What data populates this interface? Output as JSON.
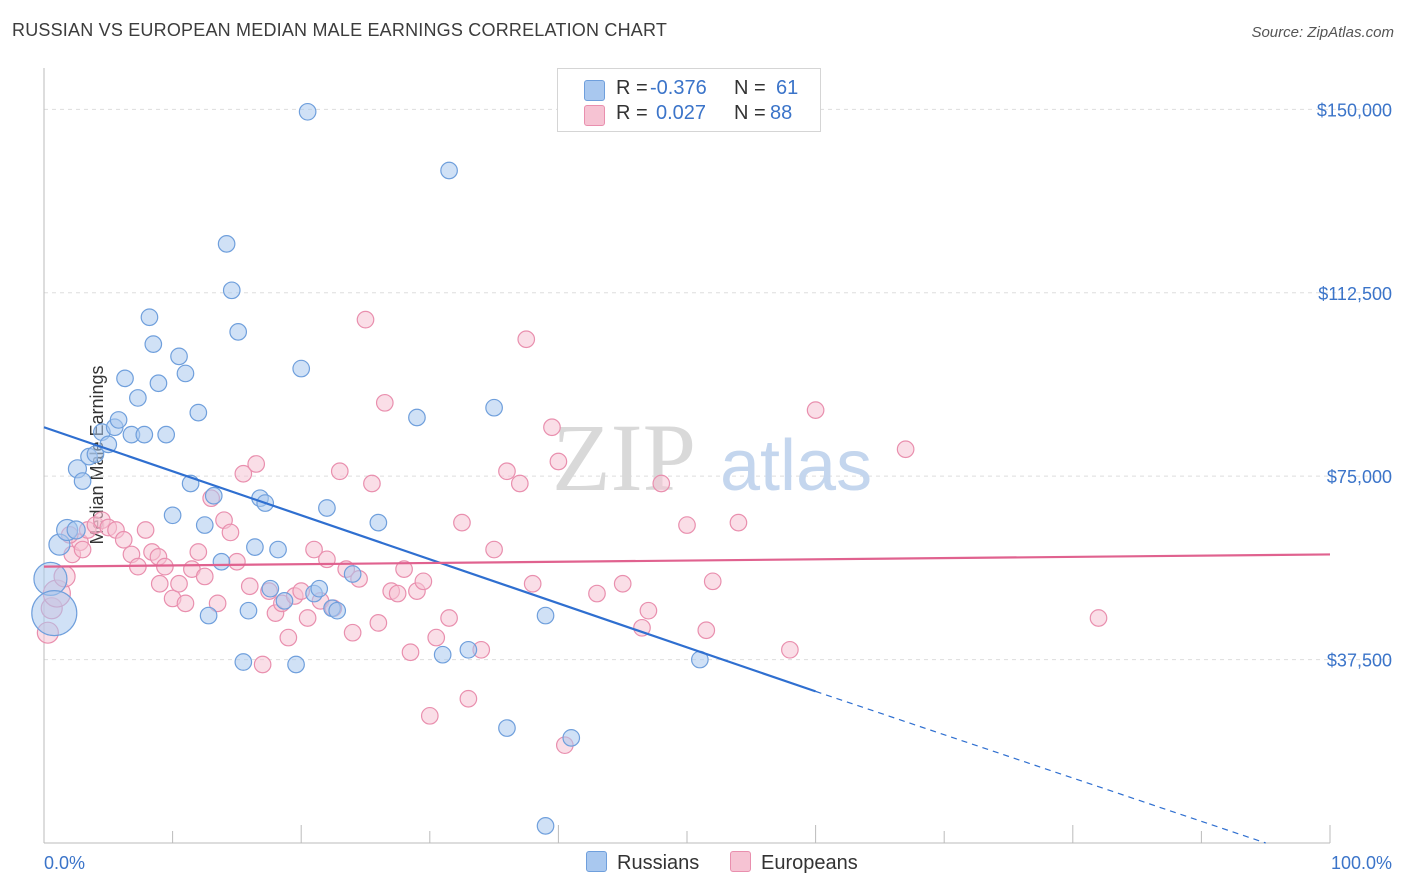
{
  "title": "RUSSIAN VS EUROPEAN MEDIAN MALE EARNINGS CORRELATION CHART",
  "source": "Source: ZipAtlas.com",
  "watermark": {
    "zip": "ZIP",
    "atlas": "atlas"
  },
  "colors": {
    "russians_fill": "#a9c8ef",
    "russians_stroke": "#6f9fdc",
    "russians_line": "#2f6fd0",
    "europeans_fill": "#f6c3d3",
    "europeans_stroke": "#e98fae",
    "europeans_line": "#e0628f",
    "tick_text": "#3b74c9",
    "grid": "#dddddd"
  },
  "legend": {
    "rows": [
      {
        "r_label": "R =",
        "r_value": "-0.376",
        "n_label": "N =",
        "n_value": "61"
      },
      {
        "r_label": "R =",
        "r_value": "0.027",
        "n_label": "N =",
        "n_value": "88"
      }
    ],
    "bottom": [
      "Russians",
      "Europeans"
    ]
  },
  "chart_data": {
    "type": "scatter",
    "title": "RUSSIAN VS EUROPEAN MEDIAN MALE EARNINGS CORRELATION CHART",
    "xlabel": "",
    "ylabel": "Median Male Earnings",
    "xlim": [
      0,
      100
    ],
    "ylim": [
      0,
      156000
    ],
    "x_tick_labels": [
      "0.0%",
      "100.0%"
    ],
    "y_ticks": [
      37500,
      75000,
      112500,
      150000
    ],
    "y_tick_labels": [
      "$37,500",
      "$75,000",
      "$112,500",
      "$150,000"
    ],
    "grid": true,
    "legend_position": "top-center",
    "series": [
      {
        "name": "Russians",
        "r": -0.376,
        "n": 61,
        "trend": {
          "x0": 0,
          "y0": 85000,
          "x1": 60,
          "y1": 31000,
          "dashed_to_x": 95,
          "dashed_to_y": 0
        },
        "points": [
          [
            0.5,
            54000,
            22
          ],
          [
            0.8,
            47000,
            30
          ],
          [
            1.2,
            61000,
            14
          ],
          [
            1.8,
            64000,
            14
          ],
          [
            2.5,
            64000,
            12
          ],
          [
            2.6,
            76500,
            12
          ],
          [
            3.0,
            74000,
            11
          ],
          [
            3.5,
            79000,
            11
          ],
          [
            4.0,
            79500,
            11
          ],
          [
            4.5,
            84000,
            11
          ],
          [
            5.0,
            81500,
            11
          ],
          [
            5.5,
            85000,
            11
          ],
          [
            5.8,
            86500,
            11
          ],
          [
            6.3,
            95000,
            11
          ],
          [
            6.8,
            83500,
            11
          ],
          [
            7.3,
            91000,
            11
          ],
          [
            7.8,
            83500,
            11
          ],
          [
            8.2,
            107500,
            11
          ],
          [
            8.5,
            102000,
            11
          ],
          [
            8.9,
            94000,
            11
          ],
          [
            9.5,
            83500,
            11
          ],
          [
            10.0,
            67000,
            11
          ],
          [
            10.5,
            99500,
            11
          ],
          [
            11.0,
            96000,
            11
          ],
          [
            11.4,
            73500,
            11
          ],
          [
            12.0,
            88000,
            11
          ],
          [
            12.5,
            65000,
            11
          ],
          [
            12.8,
            46500,
            11
          ],
          [
            13.2,
            71000,
            11
          ],
          [
            13.8,
            57500,
            11
          ],
          [
            14.2,
            122500,
            11
          ],
          [
            14.6,
            113000,
            11
          ],
          [
            15.1,
            104500,
            11
          ],
          [
            15.5,
            37000,
            11
          ],
          [
            15.9,
            47500,
            11
          ],
          [
            16.4,
            60500,
            11
          ],
          [
            16.8,
            70500,
            11
          ],
          [
            17.2,
            69500,
            11
          ],
          [
            17.6,
            52000,
            11
          ],
          [
            18.2,
            60000,
            11
          ],
          [
            18.7,
            49500,
            11
          ],
          [
            19.6,
            36500,
            11
          ],
          [
            20.0,
            97000,
            11
          ],
          [
            20.5,
            149500,
            11
          ],
          [
            21.0,
            51000,
            11
          ],
          [
            21.4,
            52000,
            11
          ],
          [
            22.0,
            68500,
            11
          ],
          [
            22.4,
            48000,
            11
          ],
          [
            22.8,
            47500,
            11
          ],
          [
            24.0,
            55000,
            11
          ],
          [
            26.0,
            65500,
            11
          ],
          [
            29.0,
            87000,
            11
          ],
          [
            31.0,
            38500,
            11
          ],
          [
            31.5,
            137500,
            11
          ],
          [
            33.0,
            39500,
            11
          ],
          [
            35.0,
            89000,
            11
          ],
          [
            36.0,
            23500,
            11
          ],
          [
            39.0,
            46500,
            11
          ],
          [
            39.0,
            3500,
            11
          ],
          [
            41.0,
            21500,
            11
          ],
          [
            51.0,
            37500,
            11
          ]
        ]
      },
      {
        "name": "Europeans",
        "r": 0.027,
        "n": 88,
        "trend": {
          "x0": 0,
          "y0": 56500,
          "x1": 100,
          "y1": 59000
        },
        "points": [
          [
            0.3,
            43000,
            14
          ],
          [
            0.6,
            48000,
            14
          ],
          [
            1.0,
            51000,
            18
          ],
          [
            1.6,
            54500,
            14
          ],
          [
            2.2,
            59000,
            11
          ],
          [
            2.8,
            61500,
            11
          ],
          [
            3.4,
            64000,
            11
          ],
          [
            4.0,
            65000,
            11
          ],
          [
            4.5,
            66000,
            11
          ],
          [
            5.0,
            64500,
            11
          ],
          [
            5.6,
            64000,
            11
          ],
          [
            6.2,
            62000,
            11
          ],
          [
            6.8,
            59000,
            11
          ],
          [
            7.3,
            56500,
            11
          ],
          [
            7.9,
            64000,
            11
          ],
          [
            8.4,
            59500,
            11
          ],
          [
            8.9,
            58500,
            11
          ],
          [
            9.4,
            56500,
            11
          ],
          [
            10.0,
            50000,
            11
          ],
          [
            10.5,
            53000,
            11
          ],
          [
            11.0,
            49000,
            11
          ],
          [
            11.5,
            56000,
            11
          ],
          [
            12.0,
            59500,
            11
          ],
          [
            12.5,
            54500,
            11
          ],
          [
            13.0,
            70500,
            11
          ],
          [
            13.5,
            49000,
            11
          ],
          [
            14.0,
            66000,
            11
          ],
          [
            14.5,
            63500,
            11
          ],
          [
            15.0,
            57500,
            11
          ],
          [
            15.5,
            75500,
            11
          ],
          [
            16.0,
            52500,
            11
          ],
          [
            16.5,
            77500,
            11
          ],
          [
            17.0,
            36500,
            11
          ],
          [
            17.5,
            51500,
            11
          ],
          [
            18.0,
            47000,
            11
          ],
          [
            18.5,
            49000,
            11
          ],
          [
            19.0,
            42000,
            11
          ],
          [
            19.5,
            50500,
            11
          ],
          [
            20.0,
            51500,
            11
          ],
          [
            20.5,
            46000,
            11
          ],
          [
            21.0,
            60000,
            11
          ],
          [
            21.5,
            49500,
            11
          ],
          [
            22.0,
            58000,
            11
          ],
          [
            22.5,
            48000,
            11
          ],
          [
            23.0,
            76000,
            11
          ],
          [
            23.5,
            56000,
            11
          ],
          [
            24.0,
            43000,
            11
          ],
          [
            24.5,
            54000,
            11
          ],
          [
            25.0,
            107000,
            11
          ],
          [
            25.5,
            73500,
            11
          ],
          [
            26.0,
            45000,
            11
          ],
          [
            26.5,
            90000,
            11
          ],
          [
            27.0,
            51500,
            11
          ],
          [
            27.5,
            51000,
            11
          ],
          [
            28.0,
            56000,
            11
          ],
          [
            28.5,
            39000,
            11
          ],
          [
            29.0,
            51500,
            11
          ],
          [
            29.5,
            53500,
            11
          ],
          [
            30.0,
            26000,
            11
          ],
          [
            30.5,
            42000,
            11
          ],
          [
            31.5,
            46000,
            11
          ],
          [
            32.5,
            65500,
            11
          ],
          [
            33.0,
            29500,
            11
          ],
          [
            34.0,
            39500,
            11
          ],
          [
            35.0,
            60000,
            11
          ],
          [
            36.0,
            76000,
            11
          ],
          [
            37.0,
            73500,
            11
          ],
          [
            37.5,
            103000,
            11
          ],
          [
            38.0,
            53000,
            11
          ],
          [
            39.5,
            85000,
            11
          ],
          [
            40.0,
            78000,
            11
          ],
          [
            40.5,
            20000,
            11
          ],
          [
            43.0,
            51000,
            11
          ],
          [
            45.0,
            53000,
            11
          ],
          [
            46.5,
            44000,
            11
          ],
          [
            47.0,
            47500,
            11
          ],
          [
            48.0,
            73500,
            11
          ],
          [
            50.0,
            65000,
            11
          ],
          [
            52.0,
            53500,
            11
          ],
          [
            51.5,
            43500,
            11
          ],
          [
            54.0,
            65500,
            11
          ],
          [
            58.0,
            39500,
            11
          ],
          [
            60.0,
            88500,
            11
          ],
          [
            67.0,
            80500,
            11
          ],
          [
            82.0,
            46000,
            11
          ],
          [
            2.0,
            63000,
            11
          ],
          [
            3.0,
            60000,
            11
          ],
          [
            9.0,
            53000,
            11
          ]
        ]
      }
    ]
  }
}
